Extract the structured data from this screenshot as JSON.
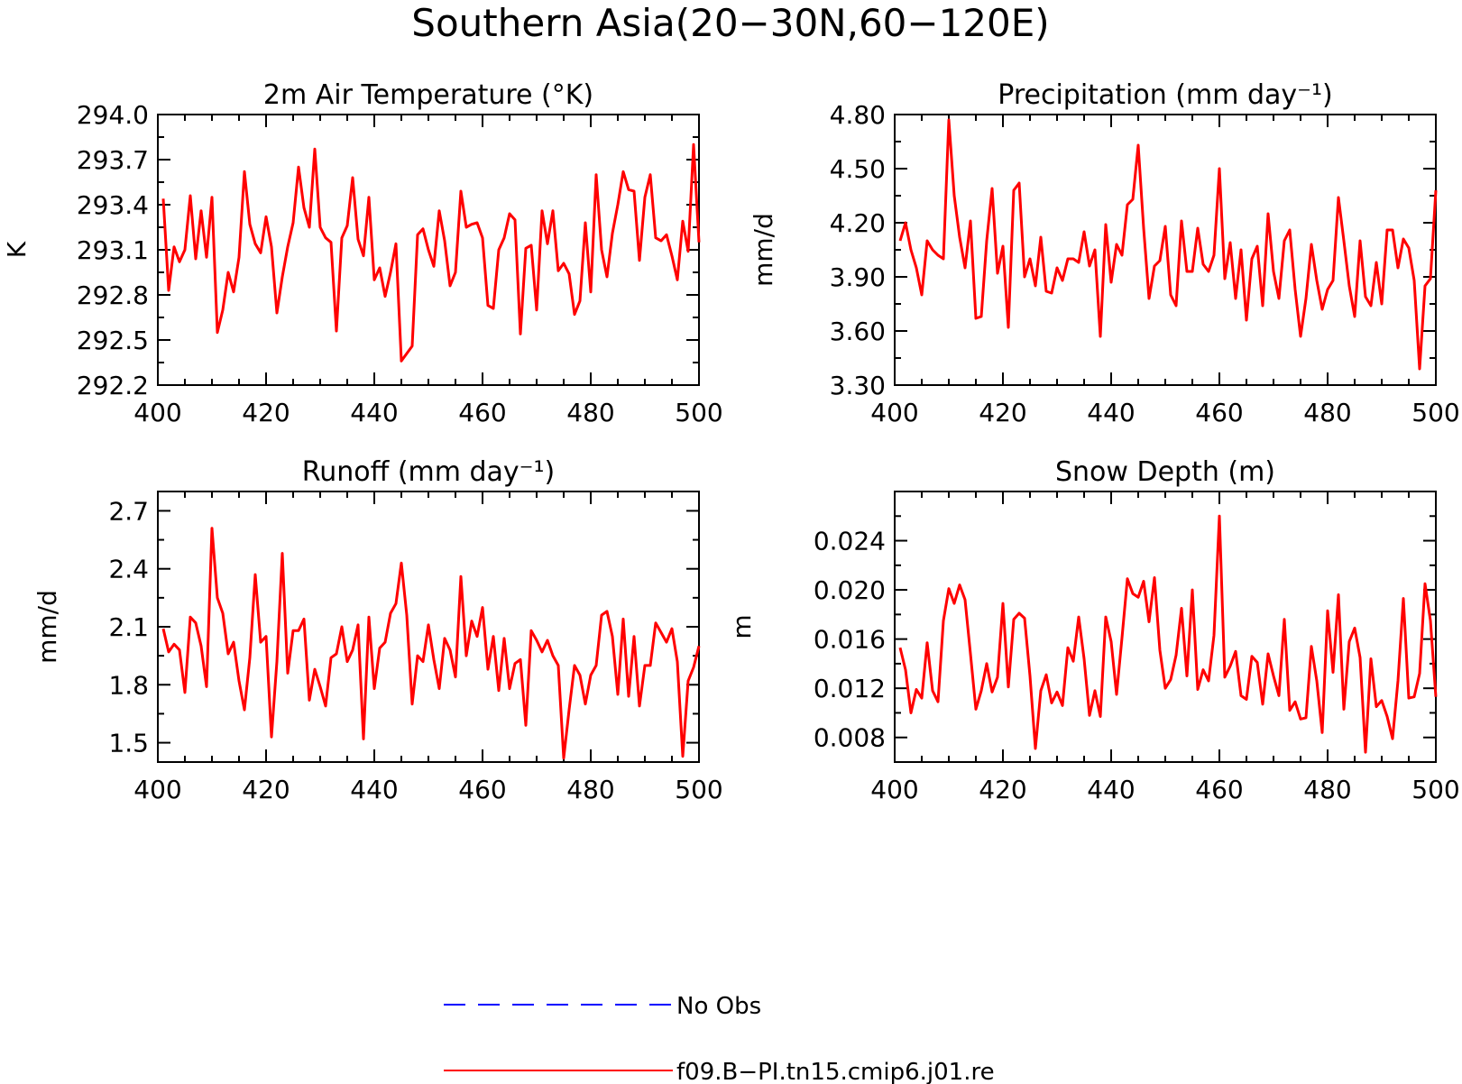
{
  "figure": {
    "title": "Southern Asia(20−30N,60−120E)",
    "series_color": "#ff0000",
    "obs_color": "#0000ff"
  },
  "legend": {
    "obs_label": "No Obs",
    "model_label": "f09.B−PI.tn15.cmip6.j01.re"
  },
  "chart_data": [
    {
      "type": "line",
      "title": "2m Air Temperature (°K)",
      "xlabel": "",
      "ylabel": "K",
      "xlim": [
        400,
        500
      ],
      "ylim": [
        292.2,
        294.0
      ],
      "x_ticks": [
        "400",
        "420",
        "440",
        "460",
        "480",
        "500"
      ],
      "y_ticks": [
        "292.2",
        "292.5",
        "292.8",
        "293.1",
        "293.4",
        "293.7",
        "294.0"
      ],
      "x": [
        401,
        402,
        403,
        404,
        405,
        406,
        407,
        408,
        409,
        410,
        411,
        412,
        413,
        414,
        415,
        416,
        417,
        418,
        419,
        420,
        421,
        422,
        423,
        424,
        425,
        426,
        427,
        428,
        429,
        430,
        431,
        432,
        433,
        434,
        435,
        436,
        437,
        438,
        439,
        440,
        441,
        442,
        443,
        444,
        445,
        446,
        447,
        448,
        449,
        450,
        451,
        452,
        453,
        454,
        455,
        456,
        457,
        458,
        459,
        460,
        461,
        462,
        463,
        464,
        465,
        466,
        467,
        468,
        469,
        470,
        471,
        472,
        473,
        474,
        475,
        476,
        477,
        478,
        479,
        480,
        481,
        482,
        483,
        484,
        485,
        486,
        487,
        488,
        489,
        490,
        491,
        492,
        493,
        494,
        495,
        496,
        497,
        498,
        499,
        500
      ],
      "series": [
        {
          "values": [
            293.44,
            292.83,
            293.12,
            293.02,
            293.1,
            293.46,
            293.04,
            293.36,
            293.05,
            293.45,
            292.55,
            292.7,
            292.95,
            292.82,
            293.05,
            293.62,
            293.27,
            293.14,
            293.08,
            293.32,
            293.12,
            292.68,
            292.92,
            293.12,
            293.28,
            293.65,
            293.38,
            293.25,
            293.77,
            293.25,
            293.18,
            293.15,
            292.56,
            293.18,
            293.26,
            293.58,
            293.17,
            293.06,
            293.45,
            292.9,
            292.98,
            292.79,
            292.95,
            293.14,
            292.36,
            292.41,
            292.46,
            293.2,
            293.24,
            293.1,
            292.99,
            293.36,
            293.16,
            292.86,
            292.95,
            293.49,
            293.25,
            293.27,
            293.28,
            293.18,
            292.73,
            292.71,
            293.1,
            293.18,
            293.34,
            293.3,
            292.54,
            293.11,
            293.13,
            292.7,
            293.36,
            293.14,
            293.36,
            292.96,
            293.01,
            292.94,
            292.67,
            292.76,
            293.28,
            292.82,
            293.6,
            293.1,
            292.92,
            293.21,
            293.4,
            293.62,
            293.5,
            293.49,
            293.03,
            293.45,
            293.6,
            293.18,
            293.16,
            293.2,
            293.06,
            292.9,
            293.29,
            293.09,
            293.8,
            293.15
          ]
        }
      ]
    },
    {
      "type": "line",
      "title": "Precipitation (mm day⁻¹)",
      "xlabel": "",
      "ylabel": "mm/d",
      "xlim": [
        400,
        500
      ],
      "ylim": [
        3.3,
        4.8
      ],
      "x_ticks": [
        "400",
        "420",
        "440",
        "460",
        "480",
        "500"
      ],
      "y_ticks": [
        "3.30",
        "3.60",
        "3.90",
        "4.20",
        "4.50",
        "4.80"
      ],
      "x": [
        401,
        402,
        403,
        404,
        405,
        406,
        407,
        408,
        409,
        410,
        411,
        412,
        413,
        414,
        415,
        416,
        417,
        418,
        419,
        420,
        421,
        422,
        423,
        424,
        425,
        426,
        427,
        428,
        429,
        430,
        431,
        432,
        433,
        434,
        435,
        436,
        437,
        438,
        439,
        440,
        441,
        442,
        443,
        444,
        445,
        446,
        447,
        448,
        449,
        450,
        451,
        452,
        453,
        454,
        455,
        456,
        457,
        458,
        459,
        460,
        461,
        462,
        463,
        464,
        465,
        466,
        467,
        468,
        469,
        470,
        471,
        472,
        473,
        474,
        475,
        476,
        477,
        478,
        479,
        480,
        481,
        482,
        483,
        484,
        485,
        486,
        487,
        488,
        489,
        490,
        491,
        492,
        493,
        494,
        495,
        496,
        497,
        498,
        499,
        500
      ],
      "series": [
        {
          "values": [
            4.1,
            4.2,
            4.05,
            3.95,
            3.8,
            4.1,
            4.05,
            4.02,
            4.0,
            4.77,
            4.35,
            4.12,
            3.95,
            4.21,
            3.67,
            3.68,
            4.1,
            4.39,
            3.92,
            4.07,
            3.62,
            4.38,
            4.42,
            3.9,
            4.0,
            3.85,
            4.12,
            3.82,
            3.81,
            3.95,
            3.88,
            4.0,
            4.0,
            3.98,
            4.15,
            3.96,
            4.05,
            3.57,
            4.19,
            3.87,
            4.08,
            4.02,
            4.3,
            4.33,
            4.63,
            4.17,
            3.78,
            3.96,
            3.99,
            4.18,
            3.8,
            3.74,
            4.21,
            3.93,
            3.93,
            4.17,
            3.97,
            3.93,
            4.02,
            4.5,
            3.89,
            4.09,
            3.78,
            4.05,
            3.66,
            4.0,
            4.07,
            3.74,
            4.25,
            3.93,
            3.78,
            4.1,
            4.16,
            3.83,
            3.57,
            3.78,
            4.08,
            3.88,
            3.72,
            3.83,
            3.88,
            4.34,
            4.1,
            3.85,
            3.68,
            4.1,
            3.79,
            3.74,
            3.98,
            3.75,
            4.16,
            4.16,
            3.95,
            4.11,
            4.06,
            3.88,
            3.39,
            3.85,
            3.89,
            4.38
          ]
        }
      ]
    },
    {
      "type": "line",
      "title": "Runoff (mm day⁻¹)",
      "xlabel": "",
      "ylabel": "mm/d",
      "xlim": [
        400,
        500
      ],
      "ylim": [
        1.4,
        2.8
      ],
      "x_ticks": [
        "400",
        "420",
        "440",
        "460",
        "480",
        "500"
      ],
      "y_ticks": [
        "1.5",
        "1.8",
        "2.1",
        "2.4",
        "2.7"
      ],
      "x": [
        401,
        402,
        403,
        404,
        405,
        406,
        407,
        408,
        409,
        410,
        411,
        412,
        413,
        414,
        415,
        416,
        417,
        418,
        419,
        420,
        421,
        422,
        423,
        424,
        425,
        426,
        427,
        428,
        429,
        430,
        431,
        432,
        433,
        434,
        435,
        436,
        437,
        438,
        439,
        440,
        441,
        442,
        443,
        444,
        445,
        446,
        447,
        448,
        449,
        450,
        451,
        452,
        453,
        454,
        455,
        456,
        457,
        458,
        459,
        460,
        461,
        462,
        463,
        464,
        465,
        466,
        467,
        468,
        469,
        470,
        471,
        472,
        473,
        474,
        475,
        476,
        477,
        478,
        479,
        480,
        481,
        482,
        483,
        484,
        485,
        486,
        487,
        488,
        489,
        490,
        491,
        492,
        493,
        494,
        495,
        496,
        497,
        498,
        499,
        500
      ],
      "series": [
        {
          "values": [
            2.09,
            1.97,
            2.01,
            1.98,
            1.76,
            2.15,
            2.12,
            2.0,
            1.79,
            2.61,
            2.25,
            2.17,
            1.96,
            2.02,
            1.82,
            1.67,
            1.94,
            2.37,
            2.02,
            2.05,
            1.53,
            1.92,
            2.48,
            1.86,
            2.08,
            2.08,
            2.14,
            1.72,
            1.88,
            1.79,
            1.69,
            1.94,
            1.96,
            2.1,
            1.92,
            1.98,
            2.11,
            1.52,
            2.15,
            1.78,
            1.99,
            2.02,
            2.17,
            2.22,
            2.43,
            2.16,
            1.7,
            1.95,
            1.92,
            2.11,
            1.93,
            1.78,
            2.04,
            1.98,
            1.84,
            2.36,
            1.95,
            2.13,
            2.05,
            2.2,
            1.88,
            2.05,
            1.77,
            2.04,
            1.78,
            1.91,
            1.93,
            1.59,
            2.08,
            2.03,
            1.97,
            2.03,
            1.95,
            1.9,
            1.42,
            1.67,
            1.9,
            1.85,
            1.7,
            1.85,
            1.9,
            2.16,
            2.18,
            2.05,
            1.75,
            2.14,
            1.74,
            2.05,
            1.69,
            1.9,
            1.9,
            2.12,
            2.07,
            2.02,
            2.09,
            1.92,
            1.43,
            1.82,
            1.89,
            2.0
          ]
        }
      ]
    },
    {
      "type": "line",
      "title": "Snow Depth (m)",
      "xlabel": "",
      "ylabel": "m",
      "xlim": [
        400,
        500
      ],
      "ylim": [
        0.006,
        0.028
      ],
      "x_ticks": [
        "400",
        "420",
        "440",
        "460",
        "480",
        "500"
      ],
      "y_ticks": [
        "0.008",
        "0.012",
        "0.016",
        "0.020",
        "0.024"
      ],
      "x": [
        401,
        402,
        403,
        404,
        405,
        406,
        407,
        408,
        409,
        410,
        411,
        412,
        413,
        414,
        415,
        416,
        417,
        418,
        419,
        420,
        421,
        422,
        423,
        424,
        425,
        426,
        427,
        428,
        429,
        430,
        431,
        432,
        433,
        434,
        435,
        436,
        437,
        438,
        439,
        440,
        441,
        442,
        443,
        444,
        445,
        446,
        447,
        448,
        449,
        450,
        451,
        452,
        453,
        454,
        455,
        456,
        457,
        458,
        459,
        460,
        461,
        462,
        463,
        464,
        465,
        466,
        467,
        468,
        469,
        470,
        471,
        472,
        473,
        474,
        475,
        476,
        477,
        478,
        479,
        480,
        481,
        482,
        483,
        484,
        485,
        486,
        487,
        488,
        489,
        490,
        491,
        492,
        493,
        494,
        495,
        496,
        497,
        498,
        499,
        500
      ],
      "series": [
        {
          "values": [
            0.0153,
            0.0135,
            0.01,
            0.0119,
            0.0112,
            0.0157,
            0.0118,
            0.0109,
            0.0175,
            0.0201,
            0.0189,
            0.0204,
            0.0192,
            0.0148,
            0.0103,
            0.0118,
            0.014,
            0.0117,
            0.0129,
            0.0189,
            0.0121,
            0.0176,
            0.0181,
            0.0177,
            0.013,
            0.0071,
            0.0118,
            0.0131,
            0.0108,
            0.0117,
            0.0106,
            0.0153,
            0.0142,
            0.0178,
            0.0144,
            0.0098,
            0.0118,
            0.0097,
            0.0178,
            0.0158,
            0.0115,
            0.0161,
            0.0209,
            0.0197,
            0.0194,
            0.0207,
            0.0174,
            0.021,
            0.0151,
            0.012,
            0.0127,
            0.0147,
            0.0185,
            0.013,
            0.02,
            0.0119,
            0.0135,
            0.0126,
            0.0163,
            0.026,
            0.0129,
            0.0138,
            0.015,
            0.0114,
            0.0111,
            0.0146,
            0.0141,
            0.0107,
            0.0148,
            0.013,
            0.0114,
            0.0176,
            0.0102,
            0.0109,
            0.0095,
            0.0096,
            0.0154,
            0.0126,
            0.0084,
            0.0183,
            0.0133,
            0.0196,
            0.0103,
            0.0158,
            0.0169,
            0.0145,
            0.0068,
            0.0144,
            0.0105,
            0.011,
            0.0097,
            0.0079,
            0.0126,
            0.0193,
            0.0112,
            0.0113,
            0.0132,
            0.0205,
            0.0175,
            0.0113
          ]
        }
      ]
    }
  ]
}
